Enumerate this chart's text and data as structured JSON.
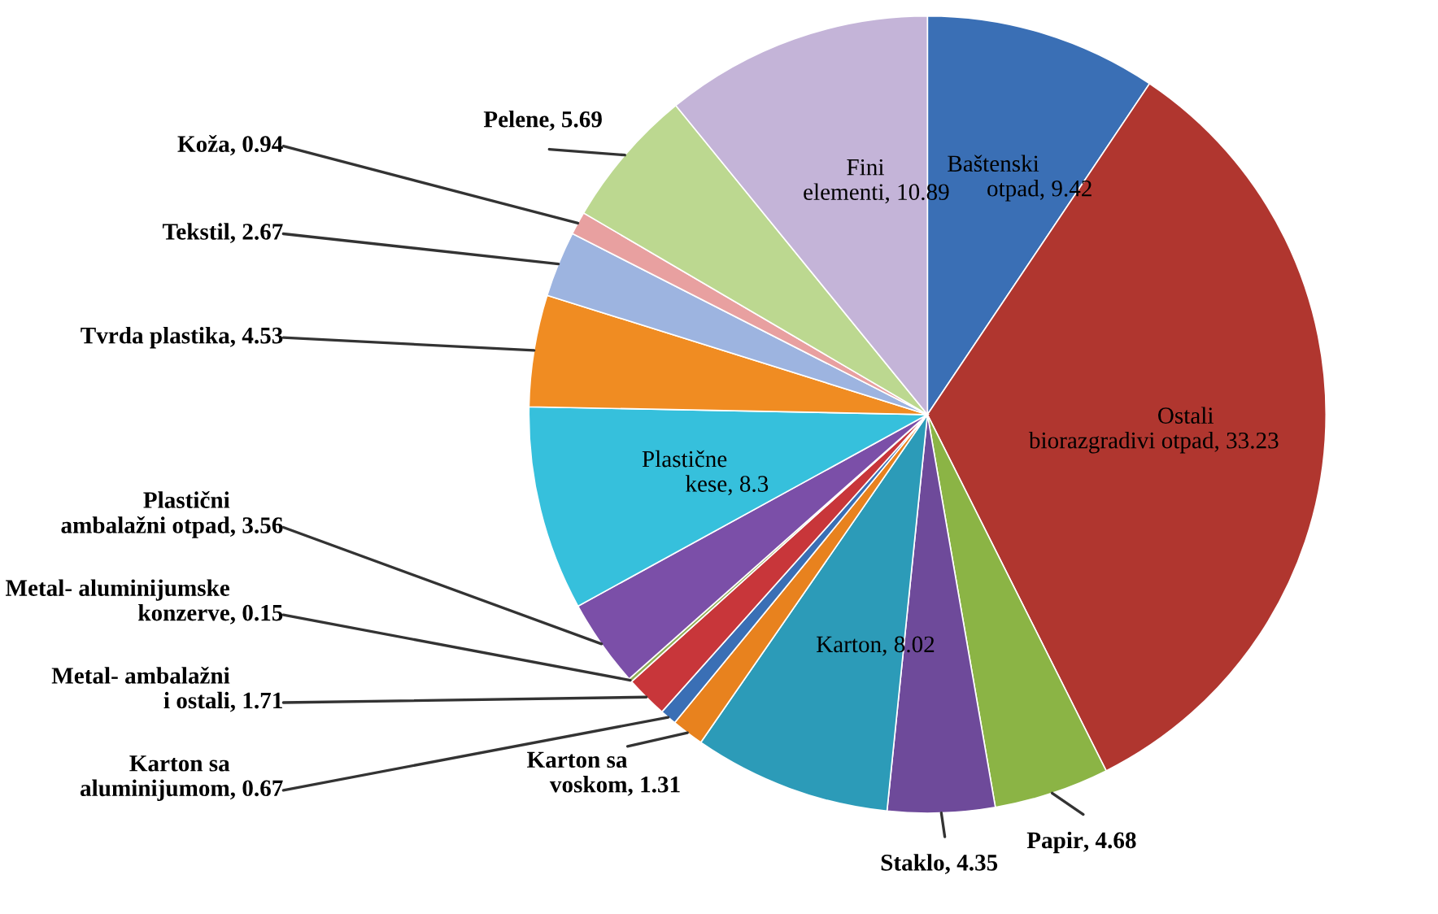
{
  "chart_data": {
    "type": "pie",
    "categories": [
      "Baštenski otpad",
      "Ostali biorazgradivi otpad",
      "Papir",
      "Staklo",
      "Karton",
      "Karton sa voskom",
      "Karton sa aluminijumom",
      "Metal- ambalažni i ostali",
      "Metal- aluminijumske konzerve",
      "Plastični ambalažni otpad",
      "Plastične kese",
      "Tvrda plastika",
      "Tekstil",
      "Koža",
      "Pelene",
      "Fini elementi"
    ],
    "values": [
      9.42,
      33.23,
      4.68,
      4.35,
      8.02,
      1.31,
      0.67,
      1.71,
      0.15,
      3.56,
      8.3,
      4.53,
      2.67,
      0.94,
      5.69,
      10.89
    ],
    "colors": [
      "#3a6fb5",
      "#b0362f",
      "#8bb445",
      "#6e4a9a",
      "#2c9bb8",
      "#e8821e",
      "#3a6fb5",
      "#c8363a",
      "#8fae55",
      "#7b4fa8",
      "#36c0dc",
      "#f08c22",
      "#9db4e0",
      "#e8a0a0",
      "#bcd890",
      "#c4b4d8"
    ],
    "value_labels": [
      ", 9.42",
      ", 33.23",
      ", 4.68",
      ", 4.35",
      ", 8.02",
      ", 1.31",
      ", 0.67",
      ", 1.71",
      ", 0.15",
      ", 3.56",
      ", 8.3",
      ", 4.53",
      ", 2.67",
      ", 0.94",
      ", 5.69",
      ", 10.89"
    ]
  }
}
